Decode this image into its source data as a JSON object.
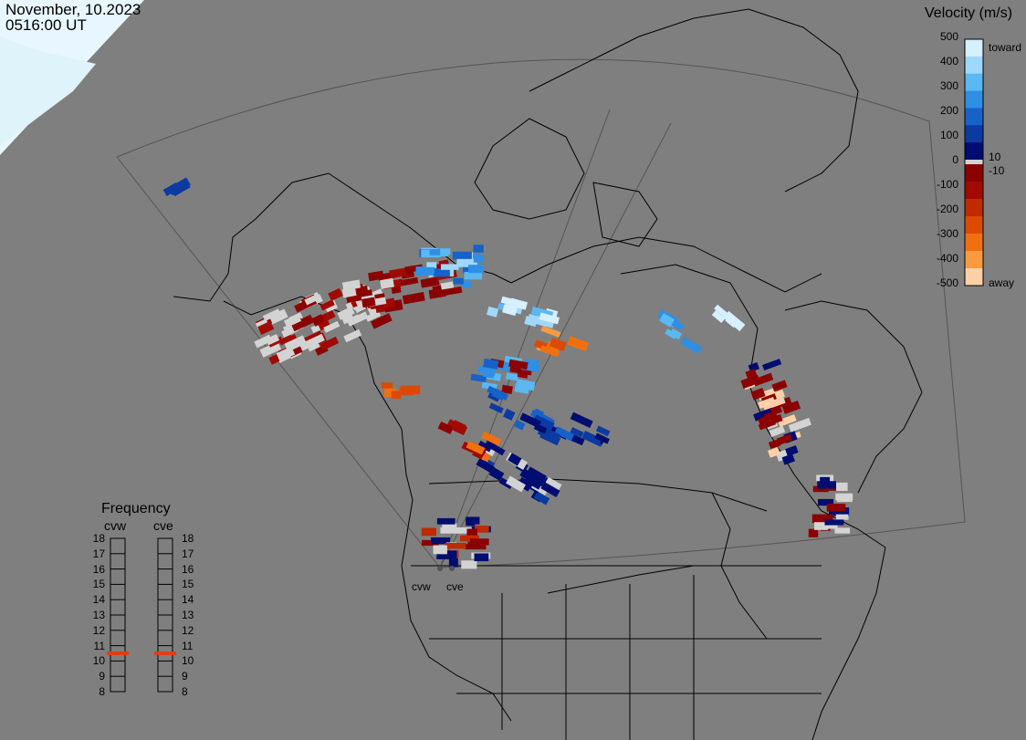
{
  "header": {
    "date": "November, 10.2023",
    "time": "0516:00 UT"
  },
  "colorbar": {
    "title": "Velocity (m/s)",
    "ticks": [
      "500",
      "400",
      "300",
      "200",
      "100",
      "0",
      "-100",
      "-200",
      "-300",
      "-400",
      "-500"
    ],
    "inner_ticks": [
      "10",
      "-10"
    ],
    "toward_label": "toward",
    "away_label": "away",
    "colors_toward": [
      "#d6f0ff",
      "#9fd8ff",
      "#5ab8f2",
      "#2f8fe3",
      "#1662c8",
      "#0b3aa0",
      "#000d70"
    ],
    "colors_away": [
      "#8b0000",
      "#a00a00",
      "#c02a00",
      "#dc4a00",
      "#f07010",
      "#fa9a40",
      "#ffd0a8"
    ],
    "ground_scatter_color": "#d3d3d3"
  },
  "frequency": {
    "title": "Frequency",
    "radars": [
      "cvw",
      "cve"
    ],
    "levels": [
      "18",
      "17",
      "16",
      "15",
      "14",
      "13",
      "12",
      "11",
      "10",
      "9",
      "8"
    ],
    "current_mhz": 10.5,
    "marker_color": "#e04010"
  },
  "sites": [
    "cvw",
    "cve"
  ]
}
